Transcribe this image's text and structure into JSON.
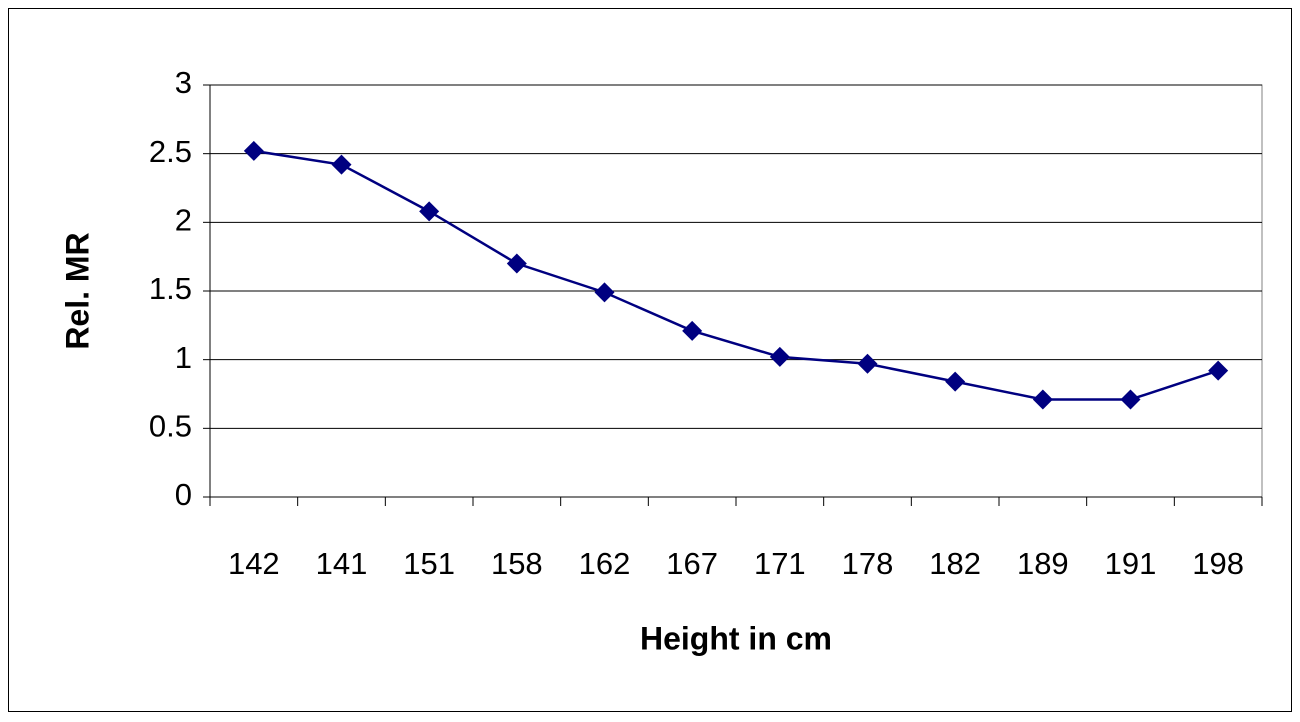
{
  "chart_data": {
    "type": "line",
    "x_label": "Height in cm",
    "y_label": "Rel. MR",
    "categories": [
      "142",
      "141",
      "151",
      "158",
      "162",
      "167",
      "171",
      "178",
      "182",
      "189",
      "191",
      "198"
    ],
    "series": [
      {
        "color": "#000080",
        "values": [
          2.52,
          2.42,
          2.08,
          1.7,
          1.49,
          1.21,
          1.02,
          0.97,
          0.84,
          0.71,
          0.71,
          0.92
        ]
      }
    ],
    "ylim": [
      0,
      3
    ],
    "yticks": [
      0,
      0.5,
      1,
      1.5,
      2,
      2.5,
      3
    ],
    "grid": true,
    "marker": "diamond"
  }
}
